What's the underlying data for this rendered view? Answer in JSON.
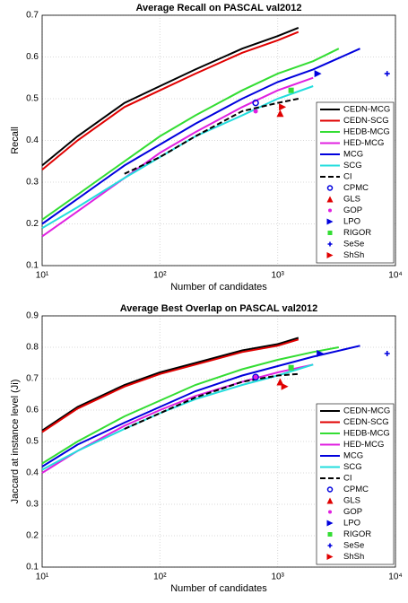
{
  "chart_data": [
    {
      "type": "line",
      "title": "Average Recall on PASCAL val2012",
      "xlabel": "Number of candidates",
      "ylabel": "Recall",
      "xscale": "log",
      "grid": true,
      "legend": "lower right",
      "xlim": [
        10,
        10000
      ],
      "xticks": [
        {
          "value": 10,
          "label": "10¹"
        },
        {
          "value": 100,
          "label": "10²"
        },
        {
          "value": 1000,
          "label": "10³"
        },
        {
          "value": 10000,
          "label": "10⁴"
        }
      ],
      "ylim": [
        0.1,
        0.7
      ],
      "yticks": [
        0.1,
        0.2,
        0.3,
        0.4,
        0.5,
        0.6,
        0.7
      ],
      "series": [
        {
          "name": "CEDN-MCG",
          "color": "#000000",
          "style": "solid",
          "x": [
            10,
            20,
            50,
            100,
            200,
            500,
            1000,
            1500
          ],
          "values": [
            0.34,
            0.41,
            0.49,
            0.53,
            0.57,
            0.62,
            0.65,
            0.67
          ]
        },
        {
          "name": "CEDN-SCG",
          "color": "#e00000",
          "style": "solid",
          "x": [
            10,
            20,
            50,
            100,
            200,
            500,
            1000,
            1500
          ],
          "values": [
            0.33,
            0.4,
            0.48,
            0.52,
            0.56,
            0.61,
            0.64,
            0.66
          ]
        },
        {
          "name": "HEDB-MCG",
          "color": "#33dd33",
          "style": "solid",
          "x": [
            10,
            20,
            50,
            100,
            200,
            500,
            1000,
            2000,
            3300
          ],
          "values": [
            0.21,
            0.27,
            0.35,
            0.41,
            0.46,
            0.52,
            0.56,
            0.59,
            0.62
          ]
        },
        {
          "name": "HED-MCG",
          "color": "#e020e0",
          "style": "solid",
          "x": [
            10,
            20,
            50,
            100,
            200,
            500,
            1000,
            2000
          ],
          "values": [
            0.17,
            0.23,
            0.31,
            0.37,
            0.42,
            0.48,
            0.52,
            0.55
          ]
        },
        {
          "name": "MCG",
          "color": "#0000dd",
          "style": "solid",
          "x": [
            10,
            20,
            50,
            100,
            200,
            500,
            1000,
            2000,
            5000
          ],
          "values": [
            0.2,
            0.26,
            0.34,
            0.39,
            0.44,
            0.5,
            0.54,
            0.57,
            0.62
          ]
        },
        {
          "name": "SCG",
          "color": "#22dddd",
          "style": "solid",
          "x": [
            10,
            20,
            50,
            100,
            200,
            500,
            1000,
            2000
          ],
          "values": [
            0.19,
            0.24,
            0.31,
            0.36,
            0.41,
            0.46,
            0.5,
            0.53
          ]
        },
        {
          "name": "CI",
          "color": "#000000",
          "style": "dashed",
          "x": [
            50,
            100,
            200,
            500,
            1000,
            1500
          ],
          "values": [
            0.32,
            0.36,
            0.41,
            0.47,
            0.49,
            0.5
          ]
        },
        {
          "name": "CPMC",
          "color": "#0000dd",
          "style": "o",
          "x": [
            650
          ],
          "values": [
            0.49
          ]
        },
        {
          "name": "GLS",
          "color": "#e00000",
          "style": "^",
          "x": [
            1050
          ],
          "values": [
            0.465
          ]
        },
        {
          "name": "GOP",
          "color": "#e020e0",
          "style": ".",
          "x": [
            650
          ],
          "values": [
            0.47
          ]
        },
        {
          "name": "LPO",
          "color": "#0000dd",
          "style": ">",
          "x": [
            2200
          ],
          "values": [
            0.56
          ]
        },
        {
          "name": "RIGOR",
          "color": "#33dd33",
          "style": "s",
          "x": [
            1300
          ],
          "values": [
            0.52
          ]
        },
        {
          "name": "SeSe",
          "color": "#0000dd",
          "style": "+",
          "x": [
            8500
          ],
          "values": [
            0.56
          ]
        },
        {
          "name": "ShSh",
          "color": "#e00000",
          "style": ">",
          "x": [
            1100
          ],
          "values": [
            0.48
          ]
        }
      ]
    },
    {
      "type": "line",
      "title": "Average Best Overlap on PASCAL val2012",
      "xlabel": "Number of candidates",
      "ylabel": "Jaccard at instance level (Ji)",
      "xscale": "log",
      "grid": true,
      "legend": "lower right",
      "xlim": [
        10,
        10000
      ],
      "xticks": [
        {
          "value": 10,
          "label": "10¹"
        },
        {
          "value": 100,
          "label": "10²"
        },
        {
          "value": 1000,
          "label": "10³"
        },
        {
          "value": 10000,
          "label": "10⁴"
        }
      ],
      "ylim": [
        0.1,
        0.9
      ],
      "yticks": [
        0.1,
        0.2,
        0.3,
        0.4,
        0.5,
        0.6,
        0.7,
        0.8,
        0.9
      ],
      "series": [
        {
          "name": "CEDN-MCG",
          "color": "#000000",
          "style": "solid",
          "x": [
            10,
            20,
            50,
            100,
            200,
            500,
            1000,
            1500
          ],
          "values": [
            0.535,
            0.61,
            0.68,
            0.72,
            0.75,
            0.79,
            0.81,
            0.83
          ]
        },
        {
          "name": "CEDN-SCG",
          "color": "#e00000",
          "style": "solid",
          "x": [
            10,
            20,
            50,
            100,
            200,
            500,
            1000,
            1500
          ],
          "values": [
            0.53,
            0.605,
            0.675,
            0.715,
            0.745,
            0.785,
            0.805,
            0.825
          ]
        },
        {
          "name": "HEDB-MCG",
          "color": "#33dd33",
          "style": "solid",
          "x": [
            10,
            20,
            50,
            100,
            200,
            500,
            1000,
            2000,
            3300
          ],
          "values": [
            0.43,
            0.5,
            0.58,
            0.63,
            0.68,
            0.73,
            0.76,
            0.785,
            0.8
          ]
        },
        {
          "name": "HED-MCG",
          "color": "#e020e0",
          "style": "solid",
          "x": [
            10,
            20,
            50,
            100,
            200,
            500,
            1000,
            2000
          ],
          "values": [
            0.4,
            0.47,
            0.55,
            0.6,
            0.645,
            0.69,
            0.72,
            0.745
          ]
        },
        {
          "name": "MCG",
          "color": "#0000dd",
          "style": "solid",
          "x": [
            10,
            20,
            50,
            100,
            200,
            500,
            1000,
            2000,
            5000
          ],
          "values": [
            0.42,
            0.49,
            0.56,
            0.61,
            0.66,
            0.71,
            0.74,
            0.77,
            0.805
          ]
        },
        {
          "name": "SCG",
          "color": "#22dddd",
          "style": "solid",
          "x": [
            10,
            20,
            50,
            100,
            200,
            500,
            1000,
            2000
          ],
          "values": [
            0.41,
            0.47,
            0.54,
            0.59,
            0.635,
            0.68,
            0.71,
            0.745
          ]
        },
        {
          "name": "CI",
          "color": "#000000",
          "style": "dashed",
          "x": [
            50,
            100,
            200,
            500,
            1000,
            1500
          ],
          "values": [
            0.54,
            0.59,
            0.64,
            0.69,
            0.71,
            0.715
          ]
        },
        {
          "name": "CPMC",
          "color": "#0000dd",
          "style": "o",
          "x": [
            650
          ],
          "values": [
            0.705
          ]
        },
        {
          "name": "GLS",
          "color": "#e00000",
          "style": "^",
          "x": [
            1050
          ],
          "values": [
            0.69
          ]
        },
        {
          "name": "GOP",
          "color": "#e020e0",
          "style": ".",
          "x": [
            650
          ],
          "values": [
            0.705
          ]
        },
        {
          "name": "LPO",
          "color": "#0000dd",
          "style": ">",
          "x": [
            2300
          ],
          "values": [
            0.78
          ]
        },
        {
          "name": "RIGOR",
          "color": "#33dd33",
          "style": "s",
          "x": [
            1300
          ],
          "values": [
            0.735
          ]
        },
        {
          "name": "SeSe",
          "color": "#0000dd",
          "style": "+",
          "x": [
            8500
          ],
          "values": [
            0.78
          ]
        },
        {
          "name": "ShSh",
          "color": "#e00000",
          "style": ">",
          "x": [
            1150
          ],
          "values": [
            0.675
          ]
        }
      ]
    }
  ]
}
